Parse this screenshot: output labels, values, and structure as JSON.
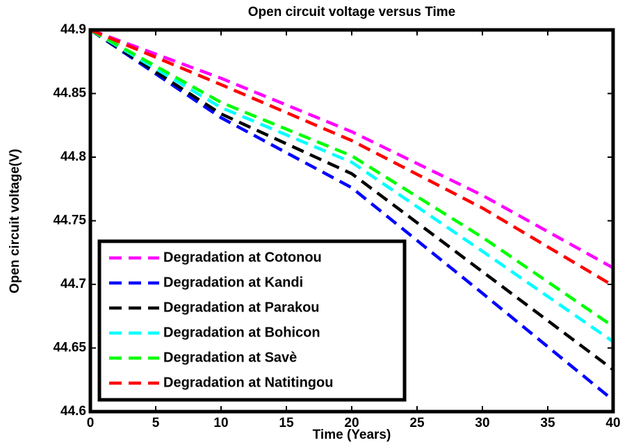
{
  "chart_data": {
    "type": "line",
    "title": "Open circuit voltage versus Time",
    "xlabel": "Time (Years)",
    "ylabel": "Open circuit voltage(V)",
    "x": [
      0,
      10,
      20,
      30,
      40
    ],
    "series": [
      {
        "name": "Degradation at Cotonou",
        "color": "#ff00ff",
        "values": [
          44.9,
          44.862,
          44.82,
          44.77,
          44.713
        ]
      },
      {
        "name": "Degradation at Kandi",
        "color": "#0000ff",
        "values": [
          44.9,
          44.831,
          44.776,
          44.693,
          44.609
        ]
      },
      {
        "name": "Degradation at Parakou",
        "color": "#000000",
        "values": [
          44.9,
          44.834,
          44.787,
          44.71,
          44.633
        ]
      },
      {
        "name": "Degradation at Bohicon",
        "color": "#00ffff",
        "values": [
          44.9,
          44.839,
          44.796,
          44.726,
          44.655
        ]
      },
      {
        "name": "Degradation at Savè",
        "color": "#00ff00",
        "values": [
          44.9,
          44.843,
          44.801,
          44.737,
          44.667
        ]
      },
      {
        "name": "Degradation at Natitingou",
        "color": "#ff0000",
        "values": [
          44.9,
          44.857,
          44.813,
          44.76,
          44.699
        ]
      }
    ],
    "xlim": [
      0,
      40
    ],
    "xticks": [
      0,
      5,
      10,
      15,
      20,
      25,
      30,
      35,
      40
    ],
    "ylim": [
      44.6,
      44.9
    ],
    "yticks": [
      44.6,
      44.65,
      44.7,
      44.75,
      44.8,
      44.85,
      44.9
    ],
    "legend": "lower left",
    "grid": false
  }
}
